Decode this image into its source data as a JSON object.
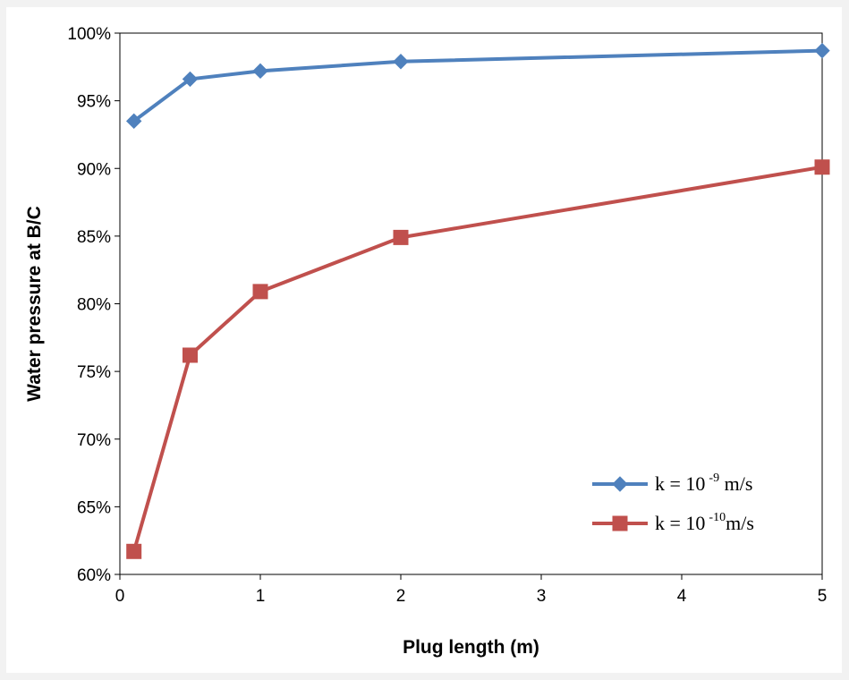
{
  "chart_data": {
    "type": "line",
    "title": "",
    "xlabel": "Plug length (m)",
    "ylabel": "Water pressure at B/C",
    "xlim": [
      0,
      5
    ],
    "ylim": [
      60,
      100
    ],
    "x_ticks": [
      "0",
      "1",
      "2",
      "3",
      "4",
      "5"
    ],
    "y_ticks": [
      "60%",
      "65%",
      "70%",
      "75%",
      "80%",
      "85%",
      "90%",
      "95%",
      "100%"
    ],
    "grid": false,
    "legend_position": "bottom-right",
    "series": [
      {
        "name_prefix": "k = 10",
        "name_exponent": "-9",
        "name_suffix": " m/s",
        "color": "#4f81bd",
        "marker": "diamond",
        "x": [
          0.1,
          0.5,
          1,
          2,
          5
        ],
        "y": [
          93.5,
          96.6,
          97.2,
          97.9,
          98.7
        ]
      },
      {
        "name_prefix": "k = 10",
        "name_exponent": "-10",
        "name_suffix": "m/s",
        "color": "#c0504d",
        "marker": "square",
        "x": [
          0.1,
          0.5,
          1,
          2,
          5
        ],
        "y": [
          61.7,
          76.2,
          80.9,
          84.9,
          90.1
        ]
      }
    ]
  }
}
